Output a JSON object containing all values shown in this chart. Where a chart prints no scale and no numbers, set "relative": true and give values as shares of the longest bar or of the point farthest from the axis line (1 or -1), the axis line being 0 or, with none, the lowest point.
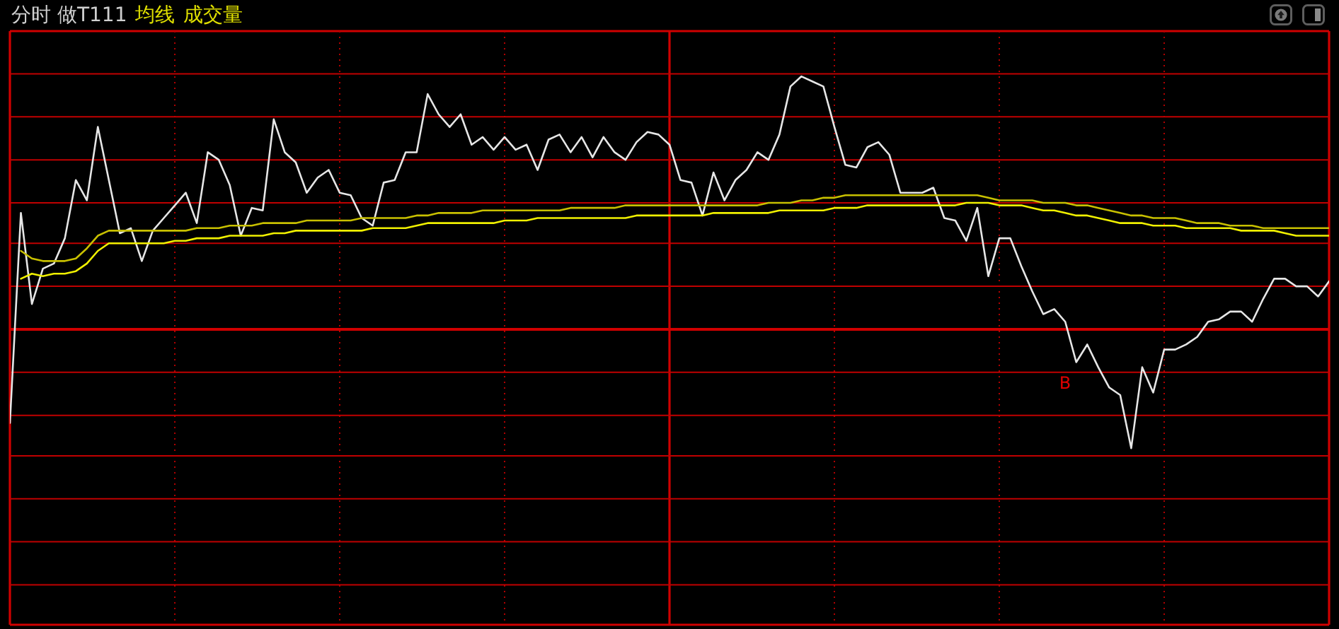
{
  "chart_data": {
    "type": "line",
    "title": "分时 做T111",
    "annotations": [
      "均线",
      "成交量",
      "B"
    ],
    "relative": true,
    "grid": "x",
    "ref_lines": [
      {
        "axis": "y",
        "value": 1.01,
        "color": "#c00000"
      },
      {
        "axis": "y",
        "value": 0.84,
        "color": "#c00000"
      },
      {
        "axis": "y",
        "value": 0.67,
        "color": "#c00000"
      },
      {
        "axis": "y",
        "value": 0.5,
        "color": "#c00000"
      },
      {
        "axis": "y",
        "value": 0.34,
        "color": "#c00000"
      },
      {
        "axis": "y",
        "value": 0.17,
        "color": "#c00000"
      },
      {
        "axis": "y",
        "value": 0,
        "color": "#d00000"
      },
      {
        "axis": "y",
        "value": -0.17,
        "color": "#c00000"
      },
      {
        "axis": "y",
        "value": -0.34,
        "color": "#c00000"
      },
      {
        "axis": "y",
        "value": -0.5,
        "color": "#c00000"
      },
      {
        "axis": "y",
        "value": -0.67,
        "color": "#c00000"
      },
      {
        "axis": "y",
        "value": -0.84,
        "color": "#c00000"
      },
      {
        "axis": "y",
        "value": -1.01,
        "color": "#c00000"
      }
    ],
    "categories": [
      null,
      null,
      null,
      null,
      null,
      null,
      null,
      null,
      null,
      null,
      null,
      null,
      null,
      null,
      null,
      null,
      null,
      null,
      null,
      null,
      null,
      null,
      null,
      null,
      null,
      null,
      null,
      null,
      null,
      null,
      null,
      null,
      null,
      null,
      null,
      null,
      null,
      null,
      null,
      null,
      null,
      null,
      null,
      null,
      null,
      null,
      null,
      null,
      null,
      null,
      null,
      null,
      null,
      null,
      null,
      null,
      null,
      null,
      null,
      null,
      null,
      null,
      null,
      null,
      null,
      null,
      null,
      null,
      null,
      null,
      null,
      null,
      null,
      null,
      null,
      null,
      null,
      null,
      null,
      null,
      null,
      null,
      null,
      null,
      null,
      null,
      null,
      null,
      null,
      null,
      null,
      null,
      null,
      null,
      null,
      null,
      null,
      null,
      null,
      null,
      null,
      null,
      null,
      null,
      null,
      null,
      null,
      null,
      null,
      null,
      null,
      null,
      null,
      null,
      null,
      null,
      null,
      null,
      null,
      null,
      null
    ],
    "series": [
      {
        "color": "#e6e6e6",
        "values": [
          -0.37,
          0.46,
          0.1,
          0.24,
          0.26,
          0.36,
          0.59,
          0.51,
          0.8,
          0.59,
          0.38,
          0.4,
          0.27,
          0.39,
          0.44,
          0.49,
          0.54,
          0.42,
          0.7,
          0.67,
          0.57,
          0.37,
          0.48,
          0.47,
          0.83,
          0.7,
          0.66,
          0.54,
          0.6,
          0.63,
          0.54,
          0.53,
          0.44,
          0.41,
          0.58,
          0.59,
          0.7,
          0.7,
          0.93,
          0.85,
          0.8,
          0.85,
          0.73,
          0.76,
          0.71,
          0.76,
          0.71,
          0.73,
          0.63,
          0.75,
          0.77,
          0.7,
          0.76,
          0.68,
          0.76,
          0.7,
          0.67,
          0.74,
          0.78,
          0.77,
          0.73,
          0.59,
          0.58,
          0.45,
          0.62,
          0.51,
          0.59,
          0.63,
          0.7,
          0.67,
          0.77,
          0.96,
          1,
          0.98,
          0.96,
          0.8,
          0.65,
          0.64,
          0.72,
          0.74,
          0.69,
          0.54,
          0.54,
          0.54,
          0.56,
          0.44,
          0.43,
          0.35,
          0.48,
          0.21,
          0.36,
          0.36,
          0.25,
          0.15,
          0.06,
          0.08,
          0.03,
          -0.13,
          -0.06,
          -0.15,
          -0.23,
          -0.26,
          -0.47,
          -0.15,
          -0.25,
          -0.08,
          -0.08,
          -0.06,
          -0.03,
          0.03,
          0.04,
          0.07,
          0.07,
          0.03,
          0.12,
          0.2,
          0.2,
          0.17,
          0.17,
          0.13,
          0.19
        ]
      },
      {
        "color": "#c8c000",
        "values": [
          null,
          0.31,
          0.28,
          0.27,
          0.27,
          0.27,
          0.28,
          0.32,
          0.37,
          0.39,
          0.39,
          0.39,
          0.39,
          0.39,
          0.39,
          0.39,
          0.39,
          0.4,
          0.4,
          0.4,
          0.41,
          0.41,
          0.41,
          0.42,
          0.42,
          0.42,
          0.42,
          0.43,
          0.43,
          0.43,
          0.43,
          0.43,
          0.44,
          0.44,
          0.44,
          0.44,
          0.44,
          0.45,
          0.45,
          0.46,
          0.46,
          0.46,
          0.46,
          0.47,
          0.47,
          0.47,
          0.47,
          0.47,
          0.47,
          0.47,
          0.47,
          0.48,
          0.48,
          0.48,
          0.48,
          0.48,
          0.49,
          0.49,
          0.49,
          0.49,
          0.49,
          0.49,
          0.49,
          0.49,
          0.49,
          0.49,
          0.49,
          0.49,
          0.49,
          0.5,
          0.5,
          0.5,
          0.51,
          0.51,
          0.52,
          0.52,
          0.53,
          0.53,
          0.53,
          0.53,
          0.53,
          0.53,
          0.53,
          0.53,
          0.53,
          0.53,
          0.53,
          0.53,
          0.53,
          0.52,
          0.51,
          0.51,
          0.51,
          0.51,
          0.5,
          0.5,
          0.5,
          0.49,
          0.49,
          0.48,
          0.47,
          0.46,
          0.45,
          0.45,
          0.44,
          0.44,
          0.44,
          0.43,
          0.42,
          0.42,
          0.42,
          0.41,
          0.41,
          0.41,
          0.4,
          0.4,
          0.4,
          0.4,
          0.4,
          0.4,
          0.4
        ]
      },
      {
        "color": "#f0f000",
        "values": [
          null,
          0.2,
          0.22,
          0.21,
          0.22,
          0.22,
          0.23,
          0.26,
          0.31,
          0.34,
          0.34,
          0.34,
          0.34,
          0.34,
          0.34,
          0.35,
          0.35,
          0.36,
          0.36,
          0.36,
          0.37,
          0.37,
          0.37,
          0.37,
          0.38,
          0.38,
          0.39,
          0.39,
          0.39,
          0.39,
          0.39,
          0.39,
          0.39,
          0.4,
          0.4,
          0.4,
          0.4,
          0.41,
          0.42,
          0.42,
          0.42,
          0.42,
          0.42,
          0.42,
          0.42,
          0.43,
          0.43,
          0.43,
          0.44,
          0.44,
          0.44,
          0.44,
          0.44,
          0.44,
          0.44,
          0.44,
          0.44,
          0.45,
          0.45,
          0.45,
          0.45,
          0.45,
          0.45,
          0.45,
          0.46,
          0.46,
          0.46,
          0.46,
          0.46,
          0.46,
          0.47,
          0.47,
          0.47,
          0.47,
          0.47,
          0.48,
          0.48,
          0.48,
          0.49,
          0.49,
          0.49,
          0.49,
          0.49,
          0.49,
          0.49,
          0.49,
          0.49,
          0.5,
          0.5,
          0.5,
          0.49,
          0.49,
          0.49,
          0.48,
          0.47,
          0.47,
          0.46,
          0.45,
          0.45,
          0.44,
          0.43,
          0.42,
          0.42,
          0.42,
          0.41,
          0.41,
          0.41,
          0.4,
          0.4,
          0.4,
          0.4,
          0.4,
          0.39,
          0.39,
          0.39,
          0.39,
          0.38,
          0.37,
          0.37,
          0.37,
          0.37
        ]
      }
    ]
  }
}
